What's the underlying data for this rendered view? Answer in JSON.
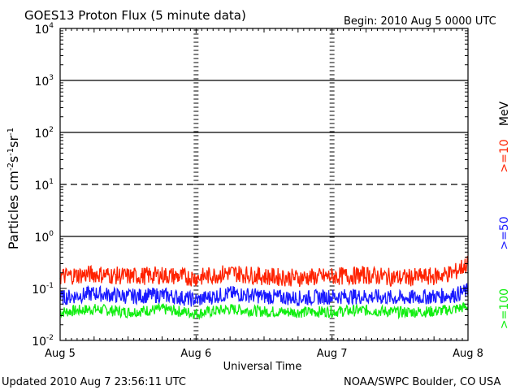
{
  "header": {
    "title": "GOES13 Proton Flux (5 minute data)",
    "begin": "Begin: 2010 Aug 5 0000 UTC"
  },
  "footer": {
    "updated": "Updated 2010 Aug  7 23:56:11 UTC",
    "credit": "NOAA/SWPC Boulder, CO USA"
  },
  "colors": {
    "ge10": "#ff2200",
    "ge50": "#1a1aff",
    "ge100": "#11ee11",
    "axis": "#000000"
  },
  "chart_data": {
    "type": "line",
    "title": "GOES13 Proton Flux (5 minute data)",
    "xlabel": "Universal Time",
    "ylabel": "Particles cm-2s-1sr-1",
    "y_scale": "log",
    "ylim": [
      0.01,
      10000
    ],
    "y_ticks": [
      {
        "base": "10",
        "exp": "-2"
      },
      {
        "base": "10",
        "exp": "-1"
      },
      {
        "base": "10",
        "exp": "0"
      },
      {
        "base": "10",
        "exp": "1"
      },
      {
        "base": "10",
        "exp": "2"
      },
      {
        "base": "10",
        "exp": "3"
      },
      {
        "base": "10",
        "exp": "4"
      }
    ],
    "x_ticks": [
      "Aug 5",
      "Aug 6",
      "Aug 7",
      "Aug 8"
    ],
    "xlim_days": [
      0,
      3
    ],
    "legend_unit": "MeV",
    "reference_lines": [
      {
        "value": 1,
        "style": "solid"
      },
      {
        "value": 10,
        "style": "dashed"
      },
      {
        "value": 100,
        "style": "solid"
      },
      {
        "value": 1000,
        "style": "solid"
      }
    ],
    "series": [
      {
        "name": ">=10",
        "color": "#ff2200",
        "x_days": [
          0,
          0.25,
          0.5,
          0.75,
          1,
          1.25,
          1.5,
          1.75,
          2,
          2.25,
          2.5,
          2.75,
          2.9,
          3
        ],
        "values": [
          0.17,
          0.19,
          0.17,
          0.18,
          0.16,
          0.2,
          0.17,
          0.16,
          0.17,
          0.18,
          0.16,
          0.17,
          0.2,
          0.3
        ]
      },
      {
        "name": ">=50",
        "color": "#1a1aff",
        "x_days": [
          0,
          0.25,
          0.5,
          0.75,
          1,
          1.25,
          1.5,
          1.75,
          2,
          2.25,
          2.5,
          2.75,
          2.9,
          3
        ],
        "values": [
          0.065,
          0.08,
          0.07,
          0.075,
          0.06,
          0.08,
          0.07,
          0.065,
          0.07,
          0.07,
          0.065,
          0.07,
          0.075,
          0.09
        ]
      },
      {
        "name": ">=100",
        "color": "#11ee11",
        "x_days": [
          0,
          0.25,
          0.5,
          0.75,
          1,
          1.25,
          1.5,
          1.75,
          2,
          2.25,
          2.5,
          2.75,
          2.9,
          3
        ],
        "values": [
          0.035,
          0.04,
          0.035,
          0.04,
          0.033,
          0.04,
          0.036,
          0.035,
          0.036,
          0.038,
          0.035,
          0.036,
          0.04,
          0.045
        ]
      }
    ]
  }
}
